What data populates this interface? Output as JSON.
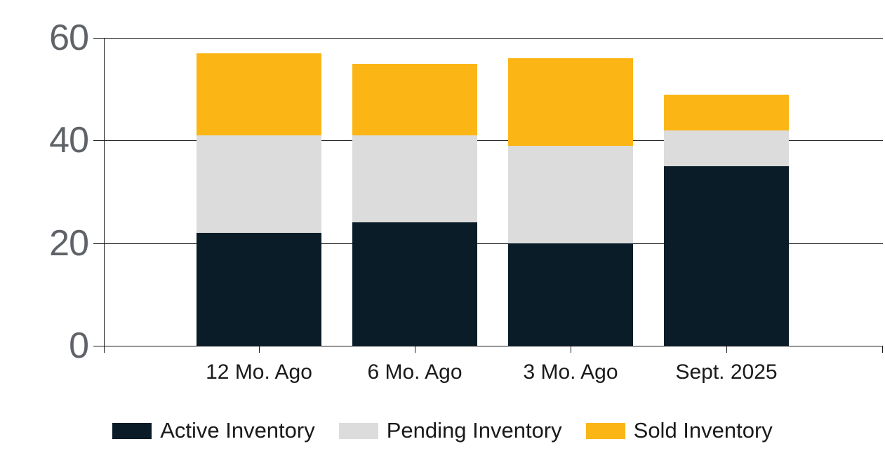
{
  "chart_data": {
    "type": "bar",
    "stacked": true,
    "categories": [
      "12 Mo. Ago",
      "6 Mo. Ago",
      "3 Mo. Ago",
      "Sept. 2025"
    ],
    "series": [
      {
        "name": "Active Inventory",
        "color": "#0a1c28",
        "values": [
          22,
          24,
          20,
          35
        ]
      },
      {
        "name": "Pending Inventory",
        "color": "#dcdcdc",
        "values": [
          19,
          17,
          19,
          7
        ]
      },
      {
        "name": "Sold Inventory",
        "color": "#fbb616",
        "values": [
          16,
          14,
          17,
          7
        ]
      }
    ],
    "stack_totals": [
      57,
      55,
      56,
      49
    ],
    "ylim": [
      0,
      60
    ],
    "yticks": [
      0,
      20,
      40,
      60
    ],
    "grid": true,
    "legend_position": "bottom",
    "colors": {
      "background": "#ffffff",
      "gridline": "#1a1a1a",
      "y_tick_label": "#5f6368",
      "category_label": "#1a1a1a",
      "legend_label": "#1a1a1a"
    }
  }
}
